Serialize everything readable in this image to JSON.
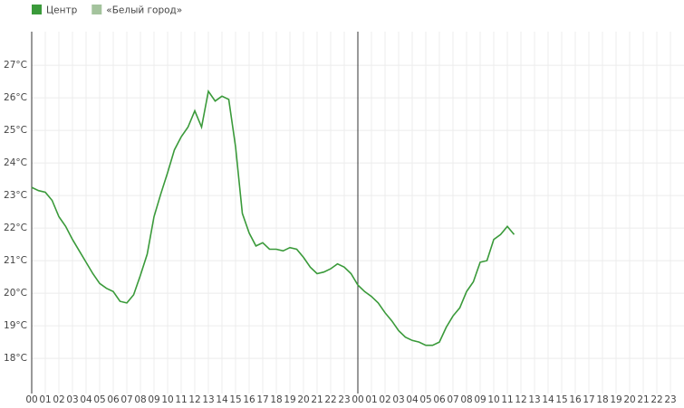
{
  "chart_data": {
    "type": "line",
    "series": [
      {
        "name": "Центр",
        "color": "#3a9a3a",
        "values": [
          23.25,
          23.15,
          23.1,
          22.85,
          22.35,
          22.05,
          21.65,
          21.3,
          20.95,
          20.6,
          20.3,
          20.15,
          20.05,
          19.75,
          19.7,
          19.95,
          20.55,
          21.2,
          22.35,
          23.05,
          23.7,
          24.4,
          24.8,
          25.1,
          25.6,
          25.1,
          26.2,
          25.9,
          26.05,
          25.95,
          24.5,
          22.45,
          21.85,
          21.45,
          21.55,
          21.35,
          21.35,
          21.3,
          21.4,
          21.35,
          21.1,
          20.8,
          20.6,
          20.65,
          20.75,
          20.9,
          20.8,
          20.6,
          20.25,
          20.05,
          19.9,
          19.7,
          19.4,
          19.15,
          18.85,
          18.65,
          18.55,
          18.5,
          18.4,
          18.4,
          18.5,
          18.95,
          19.3,
          19.55,
          20.05,
          20.35,
          20.95,
          21.0,
          21.65,
          21.8,
          22.05,
          21.8
        ]
      },
      {
        "name": "«Белый город»",
        "color": "#a4c39d",
        "values": [
          null,
          null,
          null,
          null,
          null,
          null,
          null,
          null,
          null,
          null,
          null,
          null,
          null,
          null,
          null,
          null,
          null,
          null,
          null,
          null,
          null,
          null,
          null,
          null,
          null,
          null,
          null,
          null,
          null,
          null,
          null,
          null,
          null,
          null,
          null,
          null,
          null,
          null,
          null,
          null,
          null,
          null,
          null,
          null,
          null,
          null,
          null,
          null,
          null,
          null,
          null,
          null,
          null,
          null,
          null,
          null,
          null,
          null,
          null,
          null,
          null,
          null,
          null,
          null,
          null,
          null,
          null,
          null,
          null,
          null,
          null,
          null
        ]
      }
    ],
    "x": [
      0,
      0.5,
      1,
      1.5,
      2,
      2.5,
      3,
      3.5,
      4,
      4.5,
      5,
      5.5,
      6,
      6.5,
      7,
      7.5,
      8,
      8.5,
      9,
      9.5,
      10,
      10.5,
      11,
      11.5,
      12,
      12.5,
      13,
      13.5,
      14,
      14.5,
      15,
      15.5,
      16,
      16.5,
      17,
      17.5,
      18,
      18.5,
      19,
      19.5,
      20,
      20.5,
      21,
      21.5,
      22,
      22.5,
      23,
      23.5,
      24,
      24.5,
      25,
      25.5,
      26,
      26.5,
      27,
      27.5,
      28,
      28.5,
      29,
      29.5,
      30,
      30.5,
      31,
      31.5,
      32,
      32.5,
      33,
      33.5,
      34,
      34.5,
      35,
      35.5
    ],
    "xlim": [
      0,
      48
    ],
    "xticks": [
      {
        "value": 0,
        "label": "00"
      },
      {
        "value": 1,
        "label": "01"
      },
      {
        "value": 2,
        "label": "02"
      },
      {
        "value": 3,
        "label": "03"
      },
      {
        "value": 4,
        "label": "04"
      },
      {
        "value": 5,
        "label": "05"
      },
      {
        "value": 6,
        "label": "06"
      },
      {
        "value": 7,
        "label": "07"
      },
      {
        "value": 8,
        "label": "08"
      },
      {
        "value": 9,
        "label": "09"
      },
      {
        "value": 10,
        "label": "10"
      },
      {
        "value": 11,
        "label": "11"
      },
      {
        "value": 12,
        "label": "12"
      },
      {
        "value": 13,
        "label": "13"
      },
      {
        "value": 14,
        "label": "14"
      },
      {
        "value": 15,
        "label": "15"
      },
      {
        "value": 16,
        "label": "16"
      },
      {
        "value": 17,
        "label": "17"
      },
      {
        "value": 18,
        "label": "18"
      },
      {
        "value": 19,
        "label": "19"
      },
      {
        "value": 20,
        "label": "20"
      },
      {
        "value": 21,
        "label": "21"
      },
      {
        "value": 22,
        "label": "22"
      },
      {
        "value": 23,
        "label": "23"
      },
      {
        "value": 24,
        "label": "00"
      },
      {
        "value": 25,
        "label": "01"
      },
      {
        "value": 26,
        "label": "02"
      },
      {
        "value": 27,
        "label": "03"
      },
      {
        "value": 28,
        "label": "04"
      },
      {
        "value": 29,
        "label": "05"
      },
      {
        "value": 30,
        "label": "06"
      },
      {
        "value": 31,
        "label": "07"
      },
      {
        "value": 32,
        "label": "08"
      },
      {
        "value": 33,
        "label": "09"
      },
      {
        "value": 34,
        "label": "10"
      },
      {
        "value": 35,
        "label": "11"
      },
      {
        "value": 36,
        "label": "12"
      },
      {
        "value": 37,
        "label": "13"
      },
      {
        "value": 38,
        "label": "14"
      },
      {
        "value": 39,
        "label": "15"
      },
      {
        "value": 40,
        "label": "16"
      },
      {
        "value": 41,
        "label": "17"
      },
      {
        "value": 42,
        "label": "18"
      },
      {
        "value": 43,
        "label": "19"
      },
      {
        "value": 44,
        "label": "20"
      },
      {
        "value": 45,
        "label": "21"
      },
      {
        "value": 46,
        "label": "22"
      },
      {
        "value": 47,
        "label": "23"
      }
    ],
    "ylim": [
      16.92,
      28.03
    ],
    "yticks": [
      {
        "value": 18,
        "label": "18°C"
      },
      {
        "value": 19,
        "label": "19°C"
      },
      {
        "value": 20,
        "label": "20°C"
      },
      {
        "value": 21,
        "label": "21°C"
      },
      {
        "value": 22,
        "label": "22°C"
      },
      {
        "value": 23,
        "label": "23°C"
      },
      {
        "value": 24,
        "label": "24°C"
      },
      {
        "value": 25,
        "label": "25°C"
      },
      {
        "value": 26,
        "label": "26°C"
      },
      {
        "value": 27,
        "label": "27°C"
      }
    ],
    "grid": true,
    "legend": "top-left"
  }
}
